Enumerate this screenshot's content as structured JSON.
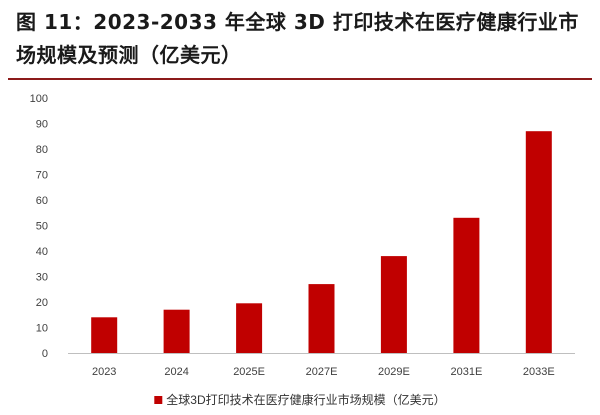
{
  "figure": {
    "title": "图 11：2023-2033 年全球 3D 打印技术在医疗健康行业市场规模及预测（亿美元）"
  },
  "chart_data": {
    "type": "bar",
    "categories": [
      "2023",
      "2024",
      "2025E",
      "2027E",
      "2029E",
      "2031E",
      "2033E"
    ],
    "series": [
      {
        "name": "全球3D打印技术在医疗健康行业市场规模（亿美元）",
        "values": [
          14,
          17,
          19.5,
          27,
          38,
          53,
          87
        ],
        "color": "#c00000"
      }
    ],
    "ylim": [
      0,
      100
    ],
    "yticks": [
      0,
      10,
      20,
      30,
      40,
      50,
      60,
      70,
      80,
      90,
      100
    ],
    "grid": false,
    "legend": "bottom"
  }
}
